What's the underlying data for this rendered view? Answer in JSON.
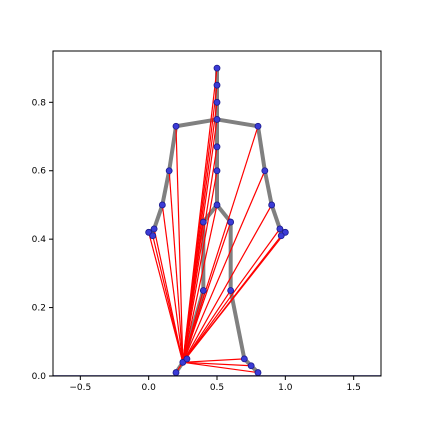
{
  "chart_data": {
    "type": "scatter",
    "title": "",
    "xlabel": "",
    "ylabel": "",
    "xlim": [
      -0.7,
      1.7
    ],
    "ylim": [
      0.0,
      0.95
    ],
    "x_ticks": [
      -0.5,
      0.0,
      0.5,
      1.0,
      1.5
    ],
    "x_tick_labels": [
      "−0.5",
      "0.0",
      "0.5",
      "1.0",
      "1.5"
    ],
    "y_ticks": [
      0.0,
      0.2,
      0.4,
      0.6,
      0.8
    ],
    "y_tick_labels": [
      "0.0",
      "0.2",
      "0.4",
      "0.6",
      "0.8"
    ],
    "grid": false,
    "legend": "none",
    "colors": {
      "skeleton": "#808080",
      "rays": "#ff0000",
      "points_fill": "#3b3bd6",
      "points_edge": "#1a1a8c",
      "baseline": "#00007f"
    },
    "points": [
      {
        "x": 0.5,
        "y": 0.9
      },
      {
        "x": 0.5,
        "y": 0.85
      },
      {
        "x": 0.5,
        "y": 0.8
      },
      {
        "x": 0.5,
        "y": 0.75
      },
      {
        "x": 0.2,
        "y": 0.73
      },
      {
        "x": 0.8,
        "y": 0.73
      },
      {
        "x": 0.5,
        "y": 0.67
      },
      {
        "x": 0.15,
        "y": 0.6
      },
      {
        "x": 0.85,
        "y": 0.6
      },
      {
        "x": 0.5,
        "y": 0.6
      },
      {
        "x": 0.1,
        "y": 0.5
      },
      {
        "x": 0.9,
        "y": 0.5
      },
      {
        "x": 0.5,
        "y": 0.5
      },
      {
        "x": 0.4,
        "y": 0.45
      },
      {
        "x": 0.6,
        "y": 0.45
      },
      {
        "x": 0.0,
        "y": 0.42
      },
      {
        "x": 0.04,
        "y": 0.43
      },
      {
        "x": 0.03,
        "y": 0.41
      },
      {
        "x": 0.96,
        "y": 0.43
      },
      {
        "x": 1.0,
        "y": 0.42
      },
      {
        "x": 0.97,
        "y": 0.41
      },
      {
        "x": 0.4,
        "y": 0.25
      },
      {
        "x": 0.6,
        "y": 0.25
      },
      {
        "x": 0.25,
        "y": 0.04
      },
      {
        "x": 0.28,
        "y": 0.05
      },
      {
        "x": 0.7,
        "y": 0.05
      },
      {
        "x": 0.75,
        "y": 0.03
      },
      {
        "x": 0.2,
        "y": 0.01
      },
      {
        "x": 0.8,
        "y": 0.01
      }
    ],
    "skeleton_edges": [
      [
        0,
        1
      ],
      [
        1,
        2
      ],
      [
        2,
        3
      ],
      [
        3,
        4
      ],
      [
        3,
        5
      ],
      [
        4,
        7
      ],
      [
        7,
        10
      ],
      [
        10,
        16
      ],
      [
        16,
        15
      ],
      [
        16,
        17
      ],
      [
        5,
        8
      ],
      [
        8,
        11
      ],
      [
        11,
        18
      ],
      [
        18,
        19
      ],
      [
        18,
        20
      ],
      [
        3,
        6
      ],
      [
        6,
        9
      ],
      [
        9,
        12
      ],
      [
        12,
        13
      ],
      [
        12,
        14
      ],
      [
        13,
        21
      ],
      [
        21,
        23
      ],
      [
        14,
        22
      ],
      [
        22,
        25
      ],
      [
        23,
        27
      ],
      [
        23,
        24
      ],
      [
        25,
        26
      ],
      [
        26,
        28
      ]
    ],
    "ray_origin": 23,
    "ray_targets": [
      0,
      1,
      2,
      3,
      4,
      5,
      6,
      7,
      8,
      9,
      10,
      11,
      12,
      13,
      14,
      15,
      16,
      17,
      18,
      19,
      20,
      21,
      22,
      24,
      25,
      26,
      27,
      28
    ]
  }
}
